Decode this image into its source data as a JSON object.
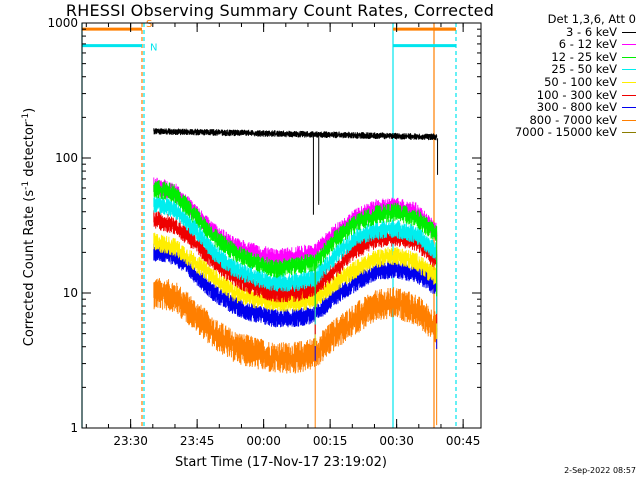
{
  "chart_data": {
    "type": "line",
    "title": "RHESSI Observing Summary Count Rates, Corrected",
    "xlabel": "Start Time (17-Nov-17 23:19:02)",
    "ylabel_main": "Corrected Count Rate (s",
    "ylabel_sup1": "-1",
    "ylabel_mid": " detector",
    "ylabel_sup2": "-1",
    "ylabel_end": ")",
    "yscale": "log",
    "ylim": [
      1,
      1000
    ],
    "xlim_minutes": [
      0,
      90
    ],
    "x_ticks": [
      {
        "label": "23:30",
        "minute": 10.97
      },
      {
        "label": "23:45",
        "minute": 25.97
      },
      {
        "label": "00:00",
        "minute": 40.97
      },
      {
        "label": "00:15",
        "minute": 55.97
      },
      {
        "label": "00:30",
        "minute": 70.97
      },
      {
        "label": "00:45",
        "minute": 85.97
      }
    ],
    "y_ticks": [
      {
        "label": "1",
        "value": 1
      },
      {
        "label": "10",
        "value": 10
      },
      {
        "label": "100",
        "value": 100
      },
      {
        "label": "1000",
        "value": 1000
      }
    ],
    "legend_header": "Det 1,3,6, Att 0",
    "flags": [
      {
        "label": "S",
        "color": "#ff7f00",
        "value": 900
      },
      {
        "label": "N",
        "color": "#00e5ee",
        "value": 680
      }
    ],
    "series": [
      {
        "name": "3 - 6 keV",
        "color": "#000000",
        "mode": "flat",
        "level": 150
      },
      {
        "name": "6 - 12 keV",
        "color": "#ff00ff",
        "mode": "curve",
        "values": [
          62,
          57,
          40,
          28,
          22,
          20,
          18,
          19,
          20,
          28,
          36,
          42,
          44,
          40,
          28
        ]
      },
      {
        "name": "12 - 25 keV",
        "color": "#00ee00",
        "mode": "curve",
        "values": [
          60,
          55,
          38,
          26,
          20,
          17,
          15,
          16,
          17,
          25,
          33,
          38,
          40,
          36,
          27
        ]
      },
      {
        "name": "25 - 50 keV",
        "color": "#00eeee",
        "mode": "curve",
        "values": [
          46,
          42,
          30,
          20,
          15,
          13,
          12,
          12,
          13,
          19,
          26,
          29,
          30,
          27,
          20
        ]
      },
      {
        "name": "50 - 100 keV",
        "color": "#ffee00",
        "mode": "curve",
        "values": [
          24,
          22,
          17,
          13,
          10,
          9,
          8.5,
          8.5,
          9,
          12,
          15,
          18,
          19,
          17,
          13
        ]
      },
      {
        "name": "100 - 300 keV",
        "color": "#ee0000",
        "mode": "curve",
        "values": [
          35,
          32,
          24,
          17,
          13,
          11,
          10,
          10,
          11,
          15,
          21,
          25,
          26,
          24,
          17
        ]
      },
      {
        "name": "300 - 800 keV",
        "color": "#0000ee",
        "mode": "curve",
        "values": [
          20,
          19,
          14,
          10,
          8,
          7,
          6.5,
          6.5,
          7,
          9.5,
          12,
          14.5,
          15,
          14,
          11
        ]
      },
      {
        "name": "800 - 7000 keV",
        "color": "#ff7f00",
        "mode": "curve",
        "values": [
          10,
          9.5,
          7,
          5,
          4,
          3.6,
          3.3,
          3.3,
          3.6,
          5,
          6.5,
          8,
          8.5,
          7.5,
          5.5
        ]
      },
      {
        "name": "7000 - 15000 keV",
        "color": "#8b7d00",
        "mode": "none"
      }
    ]
  },
  "timestamp": "2-Sep-2022 08:57"
}
